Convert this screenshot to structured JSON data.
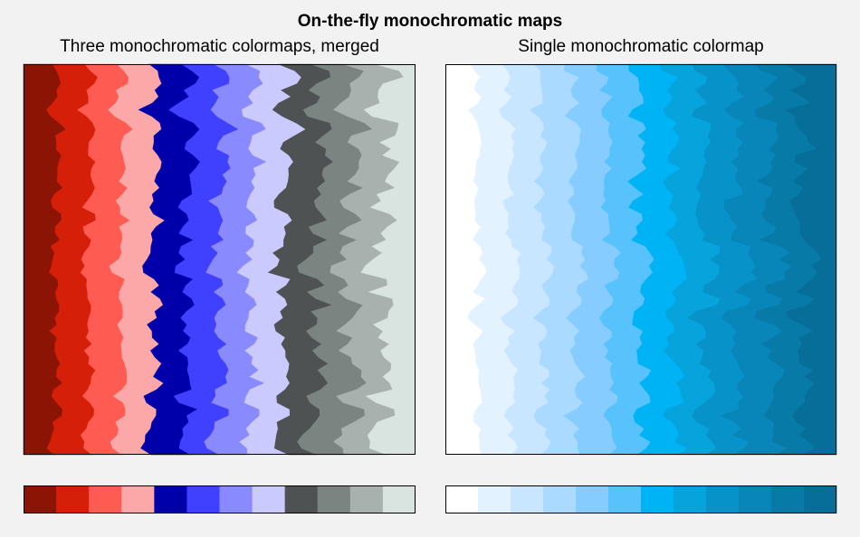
{
  "figure": {
    "suptitle": "On-the-fly monochromatic maps"
  },
  "chart_data": [
    {
      "type": "heatmap",
      "subtype": "filled-contour",
      "title": "Three monochromatic colormaps, merged",
      "xlabel": "",
      "ylabel": "",
      "ticks_visible": false,
      "grid": false,
      "trend": "values increase from left to right with jagged random noise along each row",
      "levels": 12,
      "colormap": [
        "#8b1405",
        "#d51f08",
        "#fe5b52",
        "#fda8a8",
        "#0000aa",
        "#4040ff",
        "#8a8aff",
        "#cacaff",
        "#4e5252",
        "#7b8480",
        "#a8b1ae",
        "#d9e3df"
      ],
      "colorbar": {
        "orientation": "horizontal",
        "location": "bottom",
        "ticks_visible": false
      }
    },
    {
      "type": "heatmap",
      "subtype": "filled-contour",
      "title": "Single monochromatic colormap",
      "xlabel": "",
      "ylabel": "",
      "ticks_visible": false,
      "grid": false,
      "trend": "values increase from left to right with jagged random noise along each row",
      "levels": 12,
      "colormap": [
        "#ffffff",
        "#e3f2ff",
        "#c8e6ff",
        "#aadaff",
        "#87ccff",
        "#57c2fb",
        "#00b3f5",
        "#06a3dd",
        "#0793c9",
        "#0886b9",
        "#077aa8",
        "#066e99"
      ],
      "colorbar": {
        "orientation": "horizontal",
        "location": "bottom",
        "ticks_visible": false
      }
    }
  ]
}
